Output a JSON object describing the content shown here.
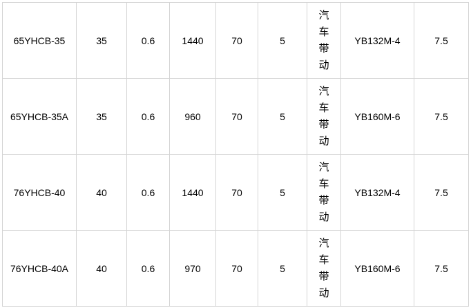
{
  "page": {
    "background_color": "#ffffff",
    "border_color": "#d4d4d4",
    "text_color": "#000000"
  },
  "table": {
    "description": "pump specification table fragment, no header row visible",
    "rows": [
      {
        "cells": [
          "65YHCB-35",
          "35",
          "0.6",
          "1440",
          "70",
          "5",
          "汽车带动",
          "YB132M-4",
          "7.5"
        ]
      },
      {
        "cells": [
          "65YHCB-35A",
          "35",
          "0.6",
          "960",
          "70",
          "5",
          "汽车带动",
          "YB160M-6",
          "7.5"
        ]
      },
      {
        "cells": [
          "76YHCB-40",
          "40",
          "0.6",
          "1440",
          "70",
          "5",
          "汽车带动",
          "YB132M-4",
          "7.5"
        ]
      },
      {
        "cells": [
          "76YHCB-40A",
          "40",
          "0.6",
          "970",
          "70",
          "5",
          "汽车带动",
          "YB160M-6",
          "7.5"
        ]
      }
    ],
    "vertical_text_column_index": 6
  }
}
